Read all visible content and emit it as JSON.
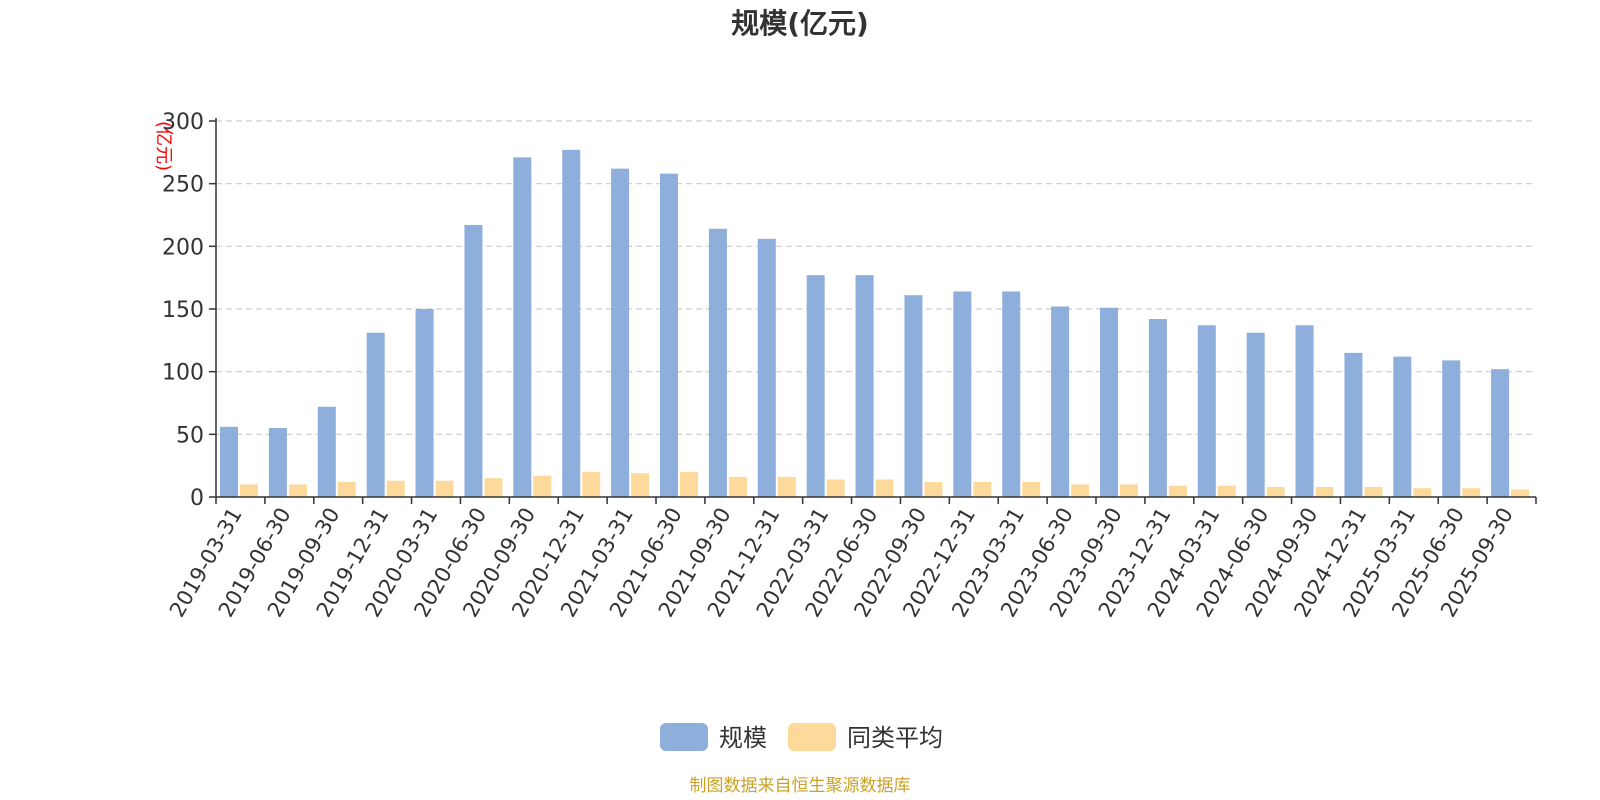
{
  "chart_data": {
    "type": "bar",
    "title": "规模(亿元)",
    "ylabel": "(亿元)",
    "xlabel": "",
    "ylim": [
      0,
      300
    ],
    "yticks": [
      0,
      50,
      100,
      150,
      200,
      250,
      300
    ],
    "grid": true,
    "legend_position": "bottom-center",
    "categories": [
      "2019-03-31",
      "2019-06-30",
      "2019-09-30",
      "2019-12-31",
      "2020-03-31",
      "2020-06-30",
      "2020-09-30",
      "2020-12-31",
      "2021-03-31",
      "2021-06-30",
      "2021-09-30",
      "2021-12-31",
      "2022-03-31",
      "2022-06-30",
      "2022-09-30",
      "2022-12-31",
      "2023-03-31",
      "2023-06-30",
      "2023-09-30",
      "2023-12-31",
      "2024-03-31",
      "2024-06-30",
      "2024-09-30",
      "2024-12-31",
      "2025-03-31",
      "2025-06-30",
      "2025-09-30"
    ],
    "series": [
      {
        "name": "规模",
        "color": "#8eaedb",
        "values": [
          56,
          55,
          72,
          131,
          150,
          217,
          271,
          277,
          262,
          258,
          214,
          206,
          177,
          177,
          161,
          164,
          164,
          152,
          151,
          142,
          137,
          131,
          137,
          115,
          112,
          109,
          102
        ]
      },
      {
        "name": "同类平均",
        "color": "#fdd99b",
        "values": [
          10,
          10,
          12,
          13,
          13,
          15,
          17,
          20,
          19,
          20,
          16,
          16,
          14,
          14,
          12,
          12,
          12,
          10,
          10,
          9,
          9,
          8,
          8,
          8,
          7,
          7,
          6
        ]
      }
    ],
    "source_note": "制图数据来自恒生聚源数据库"
  }
}
